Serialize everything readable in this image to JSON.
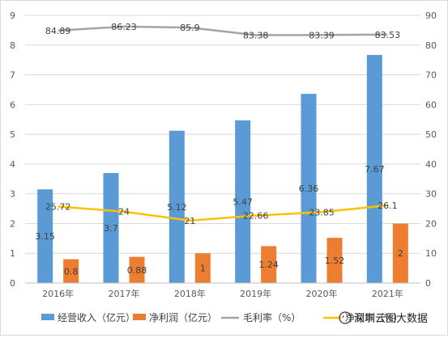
{
  "chart_data": {
    "type": "bar",
    "categories": [
      "2016年",
      "2017年",
      "2018年",
      "2019年",
      "2020年",
      "2021年"
    ],
    "series": [
      {
        "name": "经营收入（亿元）",
        "type": "bar",
        "axis": "left",
        "color": "#5b9bd5",
        "values": [
          3.15,
          3.7,
          5.12,
          5.47,
          6.36,
          7.67
        ]
      },
      {
        "name": "净利润（亿元）",
        "type": "bar",
        "axis": "left",
        "color": "#ed7d31",
        "values": [
          0.8,
          0.88,
          1,
          1.24,
          1.52,
          2
        ]
      },
      {
        "name": "毛利率（%）",
        "type": "line",
        "axis": "right",
        "color": "#a5a5a5",
        "values": [
          84.89,
          86.23,
          85.9,
          83.38,
          83.39,
          83.53
        ]
      },
      {
        "name": "净利率（%）",
        "type": "line",
        "axis": "right",
        "color": "#ffc000",
        "values": [
          25.72,
          24,
          21,
          22.66,
          23.85,
          26.1
        ]
      }
    ],
    "ylim": [
      0,
      9
    ],
    "yticks": [
      "0",
      "1",
      "2",
      "3",
      "4",
      "5",
      "6",
      "7",
      "8",
      "9"
    ],
    "y2lim": [
      0,
      90
    ],
    "y2ticks": [
      "0",
      "10",
      "20",
      "30",
      "40",
      "50",
      "60",
      "70",
      "80",
      "90"
    ],
    "grid": true,
    "legend": "bottom",
    "title": ""
  },
  "watermark": {
    "text": "深圳云图大数据"
  }
}
